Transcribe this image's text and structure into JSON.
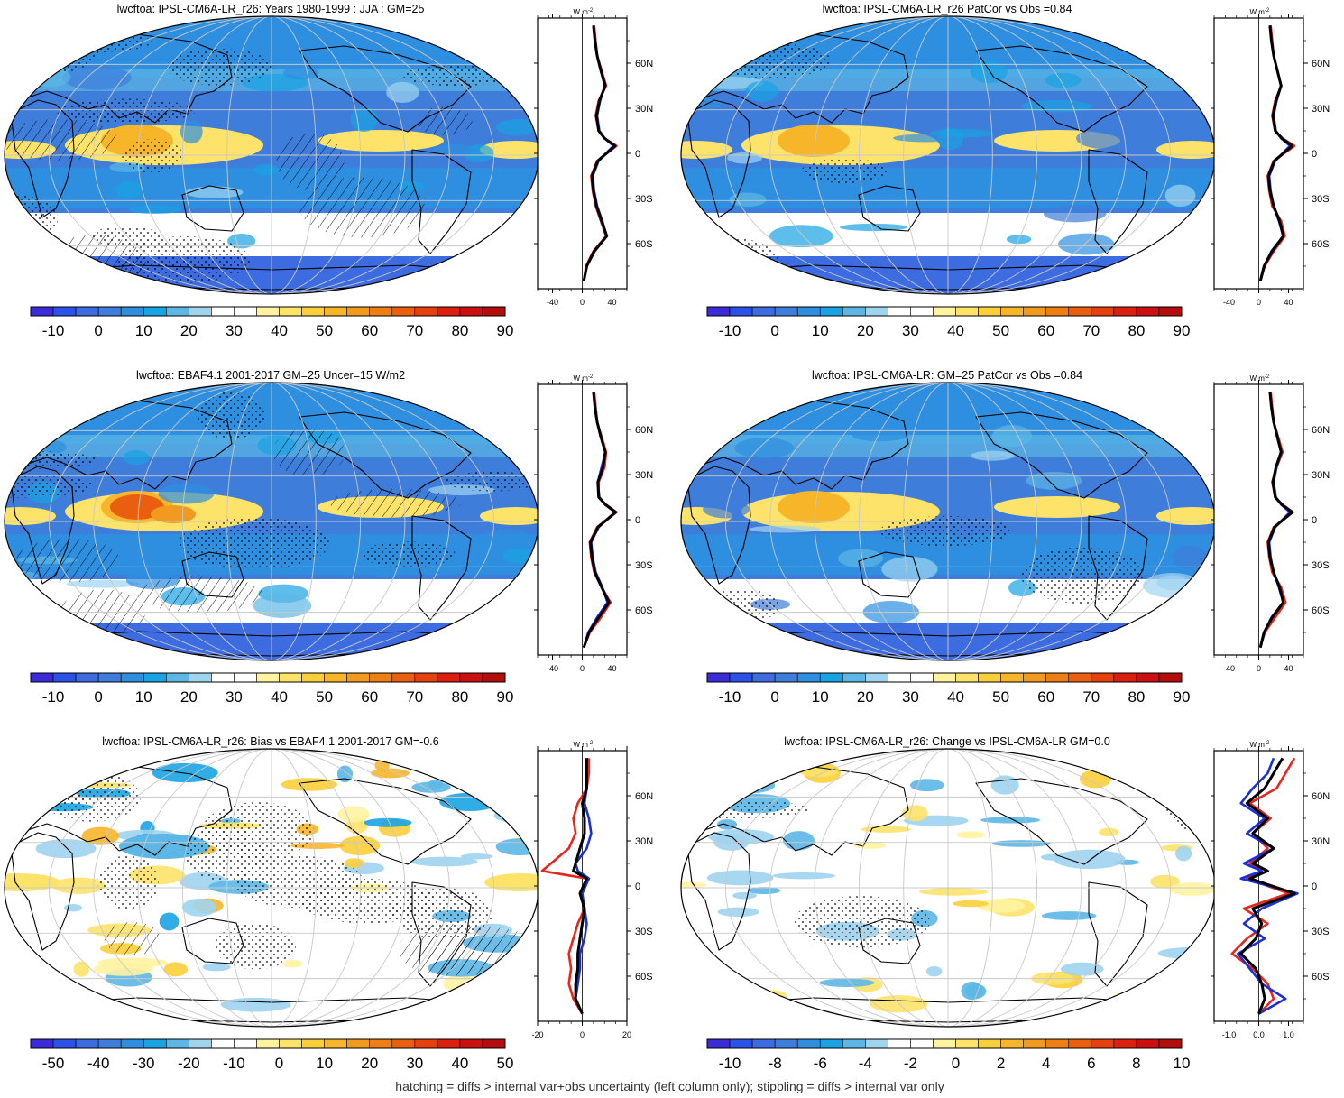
{
  "footnote": "hatching = diffs > internal var+obs uncertainty (left column only); stippling = diffs > internal var only",
  "palette": {
    "full": [
      "#3b2bd9",
      "#2b52e8",
      "#3d6be0",
      "#3f7ddb",
      "#2e8fe0",
      "#1aa3e3",
      "#5cb7e6",
      "#9fd4ef",
      "#ffffff",
      "#ffffff",
      "#fff3a0",
      "#fde36a",
      "#fbcf3a",
      "#f7b52a",
      "#f29a1f",
      "#ee7f15",
      "#ea5f0f",
      "#e6400d",
      "#dd1f10",
      "#cc0f0f",
      "#b30d0d"
    ],
    "diff": [
      "#3b2bd9",
      "#2b52e8",
      "#3d6be0",
      "#3f7ddb",
      "#2e8fe0",
      "#1aa3e3",
      "#5cb7e6",
      "#9fd4ef",
      "#ffffff",
      "#ffffff",
      "#fff3a0",
      "#fde36a",
      "#fbcf3a",
      "#f7b52a",
      "#f29a1f",
      "#ee7f15",
      "#ea5f0f",
      "#e6400d",
      "#dd1f10",
      "#cc0f0f",
      "#b30d0d"
    ]
  },
  "series_colors": {
    "red": "#e8241c",
    "blue": "#1a2fd6",
    "black": "#000000"
  },
  "lat_ticks": [
    "60N",
    "30N",
    "0",
    "30S",
    "60S"
  ],
  "units": "W m",
  "units_exp": "-2",
  "panels": [
    {
      "id": "p1",
      "title": "lwcftoa: IPSL-CM6A-LR_r26: Years 1980-1999 : JJA : GM=25",
      "map_type": "full",
      "hatch": "heavy",
      "stipple": "heavy",
      "colorbar_labels": [
        "-10",
        "0",
        "10",
        "20",
        "30",
        "40",
        "50",
        "60",
        "70",
        "80",
        "90"
      ],
      "profile_xlim": [
        -60,
        60
      ],
      "profile_xticks": [
        "-40",
        "0",
        "40"
      ],
      "profile_xtick_values": [
        -40,
        0,
        40
      ],
      "chart_data": {
        "type": "line",
        "lat": [
          -85,
          -75,
          -65,
          -55,
          -45,
          -35,
          -25,
          -15,
          -5,
          5,
          10,
          15,
          25,
          35,
          45,
          55,
          65,
          75,
          85
        ],
        "series": [
          {
            "color": "red",
            "values": [
              2,
              5,
              15,
              32,
              25,
              18,
              14,
              12,
              20,
              46,
              30,
              22,
              18,
              22,
              32,
              26,
              20,
              18,
              16
            ]
          },
          {
            "color": "blue",
            "values": [
              2,
              6,
              17,
              33,
              27,
              20,
              16,
              14,
              22,
              42,
              30,
              23,
              20,
              24,
              30,
              25,
              20,
              17,
              15
            ]
          },
          {
            "color": "black",
            "values": [
              2,
              6,
              16,
              33,
              26,
              19,
              15,
              13,
              21,
              44,
              30,
              22,
              19,
              23,
              31,
              25,
              20,
              17,
              15
            ]
          }
        ]
      }
    },
    {
      "id": "p2",
      "title": "lwcftoa: IPSL-CM6A-LR_r26 PatCor vs Obs =0.84",
      "map_type": "full",
      "hatch": "none",
      "stipple": "light",
      "colorbar_labels": [
        "-10",
        "0",
        "10",
        "20",
        "30",
        "40",
        "50",
        "60",
        "70",
        "80",
        "90"
      ],
      "profile_xlim": [
        -60,
        60
      ],
      "profile_xticks": [
        "-40",
        "0",
        "40"
      ],
      "profile_xtick_values": [
        -40,
        0,
        40
      ],
      "chart_data": {
        "type": "line",
        "lat": [
          -85,
          -75,
          -65,
          -55,
          -45,
          -35,
          -25,
          -15,
          -5,
          5,
          10,
          15,
          25,
          35,
          45,
          55,
          65,
          75,
          85
        ],
        "series": [
          {
            "color": "red",
            "values": [
              2,
              8,
              20,
              35,
              30,
              18,
              14,
              12,
              20,
              48,
              32,
              22,
              18,
              22,
              30,
              25,
              20,
              18,
              16
            ]
          },
          {
            "color": "blue",
            "values": [
              2,
              7,
              17,
              33,
              27,
              20,
              16,
              14,
              22,
              42,
              30,
              23,
              20,
              24,
              30,
              25,
              20,
              17,
              15
            ]
          },
          {
            "color": "black",
            "values": [
              2,
              7,
              18,
              33,
              28,
              20,
              15,
              13,
              21,
              45,
              31,
              22,
              19,
              23,
              30,
              25,
              20,
              17,
              15
            ]
          }
        ]
      }
    },
    {
      "id": "p3",
      "title": "lwcftoa: EBAF4.1 2001-2017 GM=25 Uncer=15 W/m2",
      "map_type": "full",
      "hatch": "heavy",
      "stipple": "medium",
      "colorbar_labels": [
        "-10",
        "0",
        "10",
        "20",
        "30",
        "40",
        "50",
        "60",
        "70",
        "80",
        "90"
      ],
      "profile_xlim": [
        -60,
        60
      ],
      "profile_xticks": [
        "-40",
        "0",
        "40"
      ],
      "profile_xtick_values": [
        -40,
        0,
        40
      ],
      "chart_data": {
        "type": "line",
        "lat": [
          -85,
          -75,
          -65,
          -55,
          -45,
          -35,
          -25,
          -15,
          -5,
          5,
          10,
          15,
          25,
          35,
          45,
          55,
          65,
          75,
          85
        ],
        "series": [
          {
            "color": "red",
            "values": [
              2,
              10,
              25,
              38,
              26,
              16,
              12,
              10,
              20,
              46,
              32,
              22,
              22,
              30,
              32,
              26,
              20,
              18,
              16
            ]
          },
          {
            "color": "blue",
            "values": [
              2,
              8,
              20,
              34,
              27,
              18,
              14,
              12,
              22,
              44,
              31,
              23,
              21,
              26,
              31,
              25,
              20,
              17,
              15
            ]
          },
          {
            "color": "black",
            "values": [
              2,
              9,
              22,
              36,
              26,
              17,
              13,
              11,
              21,
              45,
              31,
              22,
              21,
              28,
              31,
              25,
              20,
              17,
              15
            ]
          }
        ]
      }
    },
    {
      "id": "p4",
      "title": "lwcftoa: IPSL-CM6A-LR: GM=25 PatCor vs Obs =0.84",
      "map_type": "full",
      "hatch": "none",
      "stipple": "light",
      "colorbar_labels": [
        "-10",
        "0",
        "10",
        "20",
        "30",
        "40",
        "50",
        "60",
        "70",
        "80",
        "90"
      ],
      "profile_xlim": [
        -60,
        60
      ],
      "profile_xticks": [
        "-40",
        "0",
        "40"
      ],
      "profile_xtick_values": [
        -40,
        0,
        40
      ],
      "chart_data": {
        "type": "line",
        "lat": [
          -85,
          -75,
          -65,
          -55,
          -45,
          -35,
          -25,
          -15,
          -5,
          5,
          10,
          15,
          25,
          35,
          45,
          55,
          65,
          75,
          85
        ],
        "series": [
          {
            "color": "red",
            "values": [
              2,
              8,
              22,
              36,
              30,
              18,
              14,
              12,
              20,
              46,
              32,
              22,
              18,
              24,
              32,
              26,
              20,
              18,
              16
            ]
          },
          {
            "color": "blue",
            "values": [
              2,
              7,
              17,
              33,
              27,
              20,
              16,
              14,
              22,
              42,
              30,
              23,
              20,
              24,
              30,
              25,
              20,
              17,
              15
            ]
          },
          {
            "color": "black",
            "values": [
              2,
              7,
              18,
              33,
              28,
              20,
              15,
              13,
              21,
              45,
              31,
              22,
              19,
              23,
              30,
              25,
              20,
              17,
              15
            ]
          }
        ]
      }
    },
    {
      "id": "p5",
      "title": "lwcftoa: IPSL-CM6A-LR_r26: Bias vs EBAF4.1 2001-2017 GM=-0.6",
      "map_type": "diff",
      "hatch": "medium",
      "stipple": "heavy",
      "colorbar_labels": [
        "-50",
        "-40",
        "-30",
        "-20",
        "-10",
        "0",
        "10",
        "20",
        "30",
        "40",
        "50"
      ],
      "profile_xlim": [
        -20,
        20
      ],
      "profile_xticks": [
        "-20",
        "0",
        "20"
      ],
      "profile_xtick_values": [
        -20,
        0,
        20
      ],
      "chart_data": {
        "type": "line",
        "lat": [
          -85,
          -75,
          -65,
          -55,
          -45,
          -35,
          -25,
          -15,
          -5,
          5,
          10,
          15,
          25,
          35,
          45,
          55,
          65,
          75,
          85
        ],
        "series": [
          {
            "color": "red",
            "values": [
              0,
              -4,
              -6,
              -5,
              -6,
              -4,
              -2,
              1,
              -1,
              2,
              -18,
              -14,
              -6,
              -3,
              -4,
              -2,
              2,
              3,
              3
            ]
          },
          {
            "color": "blue",
            "values": [
              0,
              -3,
              -2,
              -1,
              -1,
              1,
              2,
              1,
              0,
              3,
              -2,
              -3,
              2,
              4,
              3,
              1,
              2,
              2,
              2
            ]
          },
          {
            "color": "black",
            "values": [
              0,
              -3,
              -3,
              -2,
              -2,
              -1,
              0,
              1,
              -1,
              2,
              -4,
              -3,
              -1,
              1,
              1,
              0,
              2,
              2,
              2
            ]
          }
        ]
      }
    },
    {
      "id": "p6",
      "title": "lwcftoa: IPSL-CM6A-LR_r26: Change vs IPSL-CM6A-LR GM=0.0",
      "map_type": "diff",
      "hatch": "none",
      "stipple": "light",
      "colorbar_labels": [
        "-10",
        "-8",
        "-6",
        "-4",
        "-2",
        "0",
        "2",
        "4",
        "6",
        "8",
        "10"
      ],
      "profile_xlim": [
        -1.5,
        1.5
      ],
      "profile_xticks": [
        "-1.0",
        "0.0",
        "1.0"
      ],
      "profile_xtick_values": [
        -1,
        0,
        1
      ],
      "chart_data": {
        "type": "line",
        "lat": [
          -85,
          -75,
          -65,
          -55,
          -45,
          -35,
          -25,
          -15,
          -5,
          5,
          10,
          15,
          25,
          35,
          45,
          55,
          65,
          75,
          85
        ],
        "series": [
          {
            "color": "red",
            "values": [
              0,
              0.5,
              0.3,
              -0.2,
              -0.9,
              -0.4,
              0.3,
              -0.5,
              1.0,
              -0.4,
              0.3,
              -0.3,
              0.3,
              -0.2,
              0.4,
              -0.3,
              0.6,
              0.9,
              1.2
            ]
          },
          {
            "color": "blue",
            "values": [
              0,
              0.9,
              0.1,
              -0.3,
              -0.7,
              0.2,
              -0.5,
              0.1,
              1.3,
              -0.6,
              0.1,
              -0.5,
              0.5,
              -0.4,
              0.2,
              -0.6,
              -0.2,
              0.3,
              0.5
            ]
          },
          {
            "color": "black",
            "values": [
              0,
              0.2,
              0.1,
              -0.1,
              -0.6,
              -0.1,
              0.1,
              -0.2,
              1.2,
              -0.3,
              0.3,
              -0.2,
              0.5,
              -0.2,
              0.3,
              -0.4,
              0.2,
              0.5,
              0.8
            ]
          }
        ]
      }
    }
  ]
}
